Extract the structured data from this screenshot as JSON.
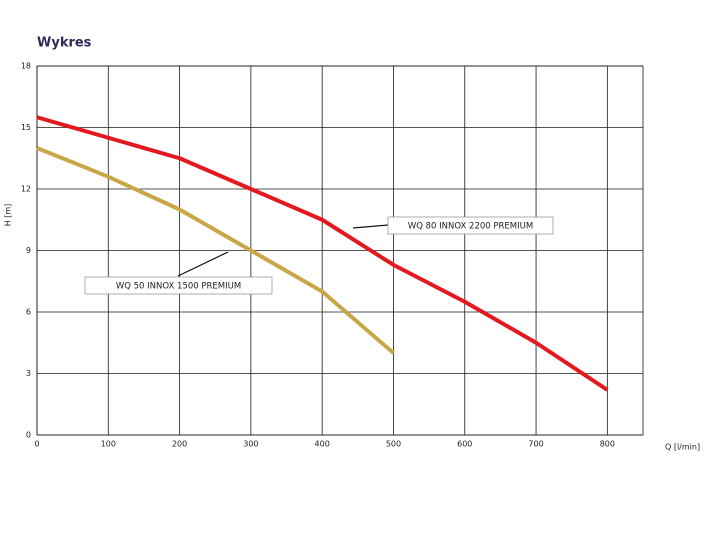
{
  "chart_data": {
    "type": "line",
    "title": "Wykres",
    "x_label": "Q [l/min]",
    "y_label": "H [m]",
    "xlim": [
      0,
      850
    ],
    "xticks": [
      0,
      100,
      200,
      300,
      400,
      500,
      600,
      700,
      800
    ],
    "ylim": [
      0,
      18
    ],
    "yticks": [
      0,
      3,
      6,
      9,
      12,
      15,
      18
    ],
    "grid": true,
    "series": [
      {
        "name": "WQ 80 INNOX 2200 PREMIUM",
        "color": "#e3191f",
        "x": [
          0,
          100,
          200,
          300,
          400,
          500,
          600,
          700,
          800
        ],
        "values": [
          15.5,
          14.5,
          13.5,
          12,
          10.5,
          8.3,
          6.5,
          4.5,
          2.2
        ]
      },
      {
        "name": "WQ 50 INNOX 1500 PREMIUM",
        "color": "#c9a646",
        "x": [
          0,
          100,
          200,
          300,
          400,
          500
        ],
        "values": [
          14,
          12.6,
          11,
          9,
          7,
          4
        ]
      }
    ]
  }
}
